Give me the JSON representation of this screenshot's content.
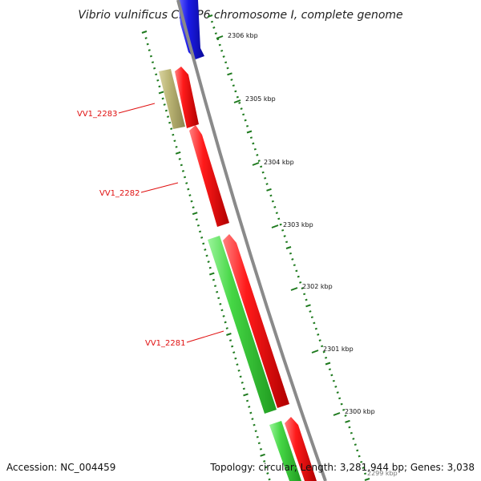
{
  "title": "Vibrio vulnificus CMCP6 chromosome I, complete genome",
  "footer": {
    "accession": "Accession: NC_004459",
    "summary": "Topology: circular; Length: 3,281,944 bp; Genes: 3,038"
  },
  "colors": {
    "backbone": "#8a8a8a",
    "tick": "#1e7a1e",
    "gene_label": "#e01010",
    "blue_gene": "#1f1fe0",
    "red_gene": "#e81818",
    "green_gene": "#3ecf3e",
    "olive_gene": "#b9b373"
  },
  "scale_labels": [
    "2306 kbp",
    "2305 kbp",
    "2304 kbp",
    "2303 kbp",
    "2302 kbp",
    "2301 kbp",
    "2300 kbp",
    "2299 kbp"
  ],
  "gene_labels": [
    "VV1_2283",
    "VV1_2282",
    "VV1_2281"
  ]
}
